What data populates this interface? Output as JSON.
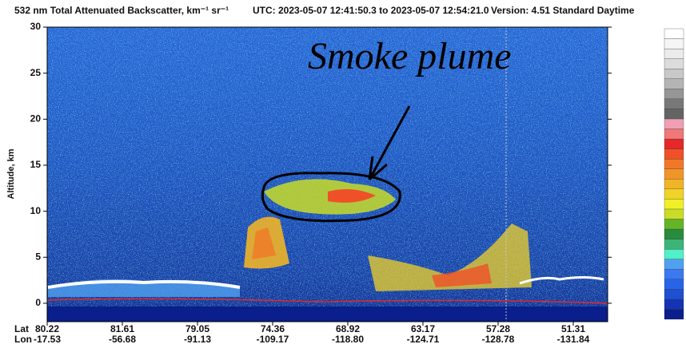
{
  "chart_data": {
    "type": "curtain",
    "title": "532 nm Total Attenuated Backscatter, km⁻¹ sr⁻¹",
    "time_range": "UTC:  2023-05-07 12:41:50.3  to  2023-05-07 12:54:21.0",
    "version": "Version: 4.51  Standard  Daytime",
    "ylabel": "Altitude, km",
    "ylim": [
      -2,
      30
    ],
    "yticks": [
      0,
      5,
      10,
      15,
      20,
      25,
      30
    ],
    "x_rows": [
      {
        "name": "Lat",
        "labels": [
          "80.22",
          "81.61",
          "79.05",
          "74.36",
          "68.92",
          "63.17",
          "57.28",
          "51.31"
        ]
      },
      {
        "name": "Lon",
        "labels": [
          "-17.53",
          "-56.68",
          "-91.13",
          "-109.17",
          "-118.80",
          "-124.71",
          "-128.78",
          "-131.84"
        ]
      }
    ],
    "annotation": "Smoke plume",
    "colorscale": [
      "#0a1e8c",
      "#1434b4",
      "#1e50d2",
      "#2864e6",
      "#3c78f0",
      "#50a0f0",
      "#50f0c8",
      "#3cb478",
      "#288c3c",
      "#64b428",
      "#c8dc28",
      "#f0f028",
      "#f0d228",
      "#f0b428",
      "#f09628",
      "#f07828",
      "#f05028",
      "#e62828",
      "#f07878",
      "#f0a0b4",
      "#646464",
      "#787878",
      "#969696",
      "#b4b4b4",
      "#c8c8c8",
      "#dcdcdc",
      "#ebebeb",
      "#f5f5f5",
      "#ffffff"
    ]
  }
}
